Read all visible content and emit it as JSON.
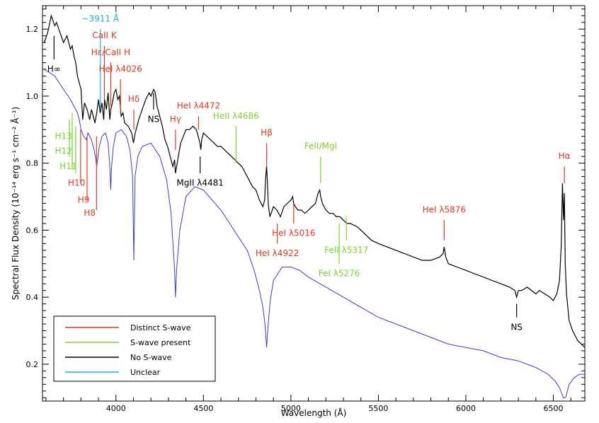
{
  "chart_data": {
    "type": "line",
    "title": "",
    "xlabel": "Wavelength (Å)",
    "ylabel": "Spectral Flux Density (10⁻¹⁴ erg s⁻¹ cm⁻² Å⁻¹)",
    "xlim": [
      3580,
      6680
    ],
    "ylim": [
      0.09,
      1.27
    ],
    "xticks": [
      4000,
      4500,
      5000,
      5500,
      6000,
      6500
    ],
    "yticks": [
      0.2,
      0.4,
      0.6,
      0.8,
      1.0,
      1.2
    ],
    "grid": false,
    "legend_placement": "bottom-left",
    "colors": {
      "observed": "#000000",
      "model": "#3b3bd6",
      "distinct": "#e8381c",
      "present": "#78d628",
      "none": "#000000",
      "unclear": "#1ab2e6"
    },
    "legend": [
      {
        "label": "Distinct S-wave",
        "color": "#e8381c"
      },
      {
        "label": "S-wave present",
        "color": "#78d628"
      },
      {
        "label": "No S-wave",
        "color": "#000000"
      },
      {
        "label": "Unclear",
        "color": "#1ab2e6"
      }
    ],
    "series": [
      {
        "x": [
          3590,
          3610,
          3630,
          3650,
          3660,
          3680,
          3700,
          3720,
          3740,
          3750,
          3760,
          3770,
          3780,
          3790,
          3800,
          3810,
          3820,
          3835,
          3850,
          3860,
          3870,
          3880,
          3890,
          3900,
          3910,
          3920,
          3930,
          3935,
          3945,
          3955,
          3965,
          3970,
          3980,
          3990,
          4000,
          4010,
          4020,
          4030,
          4040,
          4050,
          4070,
          4090,
          4100,
          4110,
          4130,
          4150,
          4170,
          4190,
          4200,
          4215,
          4225,
          4235,
          4250,
          4265,
          4280,
          4295,
          4310,
          4325,
          4335,
          4340,
          4350,
          4360,
          4370,
          4385,
          4400,
          4420,
          4440,
          4460,
          4470,
          4480,
          4485,
          4490,
          4500,
          4520,
          4540,
          4560,
          4580,
          4600,
          4620,
          4640,
          4660,
          4680,
          4700,
          4720,
          4740,
          4760,
          4780,
          4800,
          4820,
          4840,
          4850,
          4855,
          4861,
          4866,
          4870,
          4880,
          4900,
          4920,
          4940,
          4960,
          4980,
          5000,
          5010,
          5016,
          5025,
          5040,
          5060,
          5080,
          5100,
          5120,
          5140,
          5155,
          5165,
          5170,
          5180,
          5200,
          5220,
          5240,
          5260,
          5280,
          5300,
          5320,
          5340,
          5380,
          5420,
          5460,
          5500,
          5550,
          5600,
          5650,
          5700,
          5750,
          5800,
          5850,
          5870,
          5876,
          5885,
          5900,
          5950,
          6000,
          6050,
          6100,
          6150,
          6200,
          6250,
          6280,
          6290,
          6300,
          6320,
          6350,
          6400,
          6420,
          6450,
          6480,
          6500,
          6520,
          6535,
          6545,
          6552,
          6558,
          6563,
          6568,
          6575,
          6590,
          6610,
          6640,
          6680
        ],
        "y": [
          1.16,
          1.19,
          1.24,
          1.21,
          1.22,
          1.19,
          1.16,
          1.18,
          1.14,
          1.15,
          1.12,
          1.1,
          1.06,
          1.04,
          1.02,
          0.93,
          0.98,
          0.96,
          0.93,
          0.96,
          0.94,
          0.92,
          0.95,
          0.99,
          0.95,
          0.98,
          0.93,
          0.99,
          0.96,
          1.01,
          0.93,
          0.96,
          0.98,
          1.01,
          1.02,
          0.99,
          1.0,
          0.94,
          0.95,
          0.92,
          0.91,
          0.89,
          0.86,
          0.89,
          0.93,
          0.96,
          0.99,
          1.01,
          1.0,
          1.02,
          1.01,
          0.97,
          0.94,
          0.91,
          0.87,
          0.85,
          0.82,
          0.79,
          0.81,
          0.77,
          0.8,
          0.83,
          0.86,
          0.88,
          0.9,
          0.9,
          0.91,
          0.9,
          0.88,
          0.86,
          0.84,
          0.87,
          0.89,
          0.88,
          0.87,
          0.86,
          0.85,
          0.85,
          0.84,
          0.83,
          0.82,
          0.81,
          0.8,
          0.79,
          0.77,
          0.75,
          0.73,
          0.72,
          0.69,
          0.67,
          0.69,
          0.75,
          0.79,
          0.74,
          0.68,
          0.64,
          0.67,
          0.66,
          0.64,
          0.67,
          0.68,
          0.69,
          0.7,
          0.68,
          0.67,
          0.66,
          0.66,
          0.65,
          0.66,
          0.67,
          0.68,
          0.71,
          0.72,
          0.7,
          0.68,
          0.66,
          0.65,
          0.65,
          0.64,
          0.64,
          0.63,
          0.62,
          0.62,
          0.61,
          0.59,
          0.57,
          0.56,
          0.55,
          0.54,
          0.53,
          0.52,
          0.51,
          0.51,
          0.52,
          0.53,
          0.55,
          0.52,
          0.5,
          0.49,
          0.48,
          0.47,
          0.46,
          0.45,
          0.44,
          0.43,
          0.42,
          0.4,
          0.42,
          0.42,
          0.43,
          0.41,
          0.42,
          0.41,
          0.4,
          0.39,
          0.41,
          0.45,
          0.55,
          0.74,
          0.63,
          0.71,
          0.5,
          0.41,
          0.33,
          0.3,
          0.27,
          0.25
        ]
      },
      {
        "x": [
          3590,
          3650,
          3700,
          3740,
          3760,
          3780,
          3790,
          3800,
          3815,
          3830,
          3840,
          3860,
          3875,
          3885,
          3890,
          3895,
          3905,
          3920,
          3940,
          3955,
          3965,
          3970,
          3975,
          3985,
          4000,
          4030,
          4060,
          4080,
          4095,
          4102,
          4109,
          4125,
          4150,
          4200,
          4250,
          4290,
          4315,
          4335,
          4340,
          4346,
          4365,
          4400,
          4450,
          4500,
          4550,
          4600,
          4650,
          4700,
          4750,
          4790,
          4820,
          4840,
          4852,
          4861,
          4870,
          4882,
          4900,
          4950,
          5000,
          5050,
          5100,
          5200,
          5300,
          5400,
          5500,
          5600,
          5700,
          5800,
          5900,
          6000,
          6100,
          6200,
          6300,
          6400,
          6470,
          6510,
          6535,
          6550,
          6557,
          6563,
          6569,
          6576,
          6590,
          6620,
          6650,
          6680
        ],
        "y": [
          1.08,
          1.06,
          1.02,
          0.99,
          0.97,
          0.95,
          0.93,
          0.9,
          0.88,
          0.87,
          0.89,
          0.87,
          0.84,
          0.81,
          0.79,
          0.81,
          0.85,
          0.88,
          0.89,
          0.86,
          0.79,
          0.72,
          0.79,
          0.85,
          0.89,
          0.9,
          0.88,
          0.84,
          0.76,
          0.51,
          0.76,
          0.82,
          0.85,
          0.86,
          0.82,
          0.75,
          0.65,
          0.48,
          0.4,
          0.48,
          0.6,
          0.7,
          0.73,
          0.72,
          0.69,
          0.66,
          0.62,
          0.58,
          0.54,
          0.48,
          0.42,
          0.37,
          0.32,
          0.25,
          0.32,
          0.39,
          0.45,
          0.49,
          0.49,
          0.48,
          0.46,
          0.43,
          0.4,
          0.37,
          0.34,
          0.32,
          0.3,
          0.28,
          0.26,
          0.25,
          0.24,
          0.22,
          0.21,
          0.19,
          0.17,
          0.15,
          0.13,
          0.11,
          0.1,
          0.1,
          0.1,
          0.11,
          0.14,
          0.16,
          0.17,
          0.17
        ]
      }
    ],
    "annotations": [
      {
        "text": "H∞",
        "x": 3646,
        "y_from": 1.18,
        "y_to": 1.11,
        "status": "none",
        "text_y": 1.08
      },
      {
        "text": "~3911 Å",
        "x": 3911,
        "y_from": 1.2,
        "y_to": 0.96,
        "status": "unclear",
        "text_y": 1.23
      },
      {
        "text": "CaII K",
        "x": 3934,
        "y_from": 1.15,
        "y_to": 0.99,
        "status": "distinct",
        "text_y": 1.18
      },
      {
        "text": "Hε/CaII H",
        "x": 3970,
        "y_from": 1.1,
        "y_to": 0.97,
        "status": "distinct",
        "text_y": 1.13
      },
      {
        "text": "HeI λ4026",
        "x": 4026,
        "y_from": 1.05,
        "y_to": 0.95,
        "status": "distinct",
        "text_y": 1.08
      },
      {
        "text": "Hδ",
        "x": 4102,
        "y_from": 0.96,
        "y_to": 0.9,
        "status": "distinct",
        "text_y": 0.99
      },
      {
        "text": "NS",
        "x": 4215,
        "y_from": 1.01,
        "y_to": 0.96,
        "status": "none",
        "text_y": 0.93
      },
      {
        "text": "Hγ",
        "x": 4340,
        "y_from": 0.9,
        "y_to": 0.84,
        "status": "distinct",
        "text_y": 0.93
      },
      {
        "text": "HeI λ4472",
        "x": 4472,
        "y_from": 0.94,
        "y_to": 0.9,
        "status": "distinct",
        "text_y": 0.97
      },
      {
        "text": "MgII λ4481",
        "x": 4481,
        "y_from": 0.82,
        "y_to": 0.77,
        "status": "none",
        "text_y": 0.74
      },
      {
        "text": "HeII λ4686",
        "x": 4686,
        "y_from": 0.91,
        "y_to": 0.8,
        "status": "present",
        "text_y": 0.94
      },
      {
        "text": "Hβ",
        "x": 4861,
        "y_from": 0.86,
        "y_to": 0.79,
        "status": "distinct",
        "text_y": 0.89
      },
      {
        "text": "HeI λ4922",
        "x": 4922,
        "y_from": 0.62,
        "y_to": 0.56,
        "status": "distinct",
        "text_y": 0.53
      },
      {
        "text": "HeI λ5016",
        "x": 5016,
        "y_from": 0.68,
        "y_to": 0.62,
        "status": "distinct",
        "text_y": 0.59
      },
      {
        "text": "FeII/MgI",
        "x": 5170,
        "y_from": 0.82,
        "y_to": 0.74,
        "status": "present",
        "text_y": 0.85
      },
      {
        "text": "FeII λ5317",
        "x": 5317,
        "y_from": 0.64,
        "y_to": 0.57,
        "status": "present",
        "text_y": 0.54
      },
      {
        "text": "FeI λ5276",
        "x": 5276,
        "y_from": 0.62,
        "y_to": 0.5,
        "status": "present",
        "text_y": 0.47
      },
      {
        "text": "HeI λ5876",
        "x": 5876,
        "y_from": 0.63,
        "y_to": 0.57,
        "status": "distinct",
        "text_y": 0.66
      },
      {
        "text": "NS",
        "x": 6290,
        "y_from": 0.38,
        "y_to": 0.34,
        "status": "none",
        "text_y": 0.31
      },
      {
        "text": "Hα",
        "x": 6563,
        "y_from": 0.79,
        "y_to": 0.74,
        "status": "distinct",
        "text_y": 0.82
      }
    ],
    "ladder": {
      "present": [
        {
          "x": 3734,
          "y_from": 0.93,
          "y_to": 0.82
        },
        {
          "x": 3750,
          "y_from": 0.95,
          "y_to": 0.78
        },
        {
          "x": 3770,
          "y_from": 0.91,
          "y_to": 0.77
        }
      ],
      "present_labels": [
        {
          "text": "H13",
          "x": 3700,
          "y": 0.88
        },
        {
          "text": "H12",
          "x": 3700,
          "y": 0.835
        },
        {
          "text": "H11",
          "x": 3727,
          "y": 0.79
        }
      ],
      "distinct": [
        {
          "x": 3798,
          "y_from": 0.9,
          "y_to": 0.74
        },
        {
          "x": 3835,
          "y_from": 0.88,
          "y_to": 0.69
        },
        {
          "x": 3889,
          "y_from": 0.88,
          "y_to": 0.66
        }
      ],
      "distinct_labels": [
        {
          "text": "H10",
          "x": 3775,
          "y": 0.74
        },
        {
          "text": "H9",
          "x": 3815,
          "y": 0.69
        },
        {
          "text": "H8",
          "x": 3850,
          "y": 0.65
        }
      ]
    }
  }
}
